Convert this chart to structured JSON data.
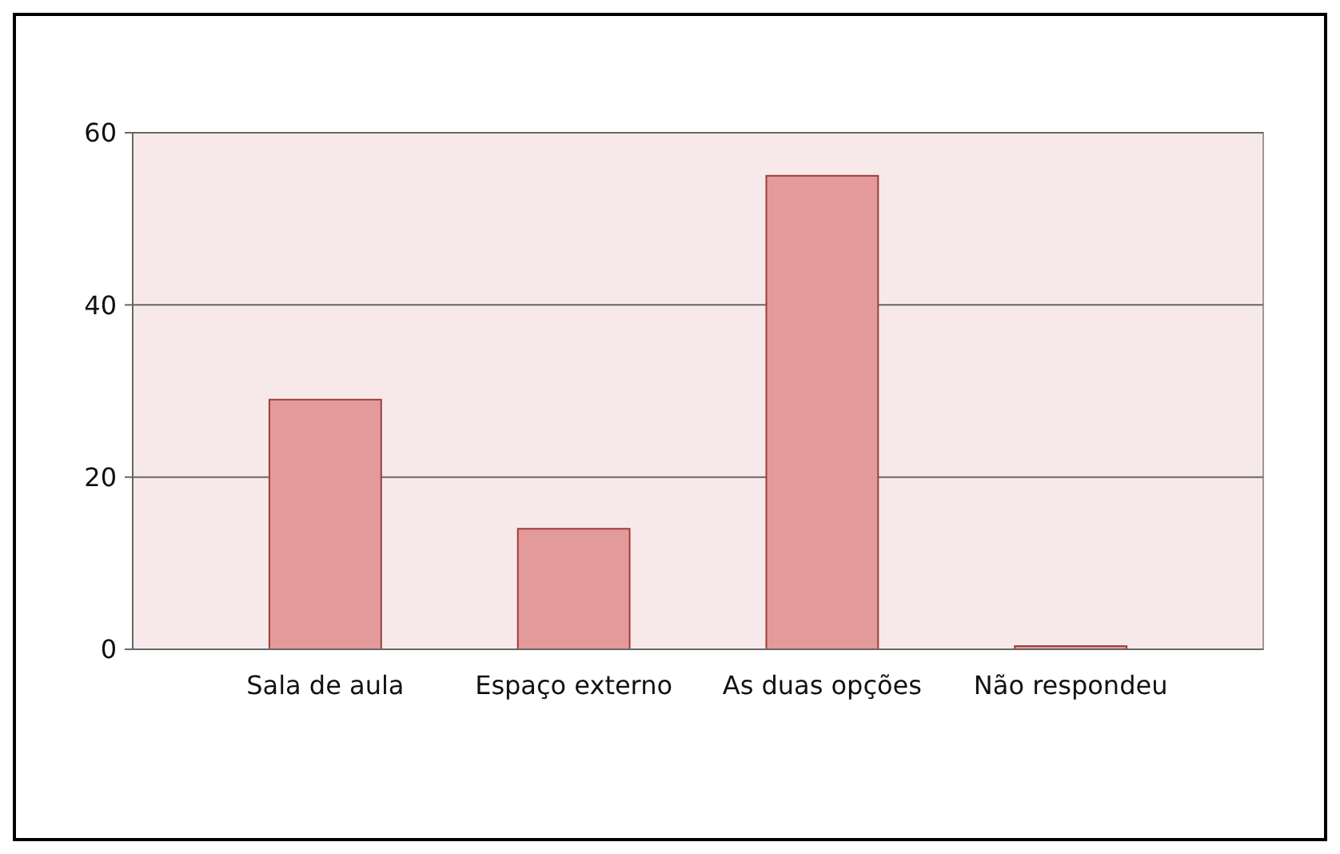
{
  "chart_data": {
    "type": "bar",
    "categories": [
      "Sala de aula",
      "Espaço externo",
      "As duas opções",
      "Não respondeu"
    ],
    "values": [
      29,
      14,
      55,
      0
    ],
    "color": "#e39a9a",
    "ylim": [
      0,
      60
    ],
    "yticks": [
      0,
      20,
      40,
      60
    ],
    "grid": "y"
  }
}
